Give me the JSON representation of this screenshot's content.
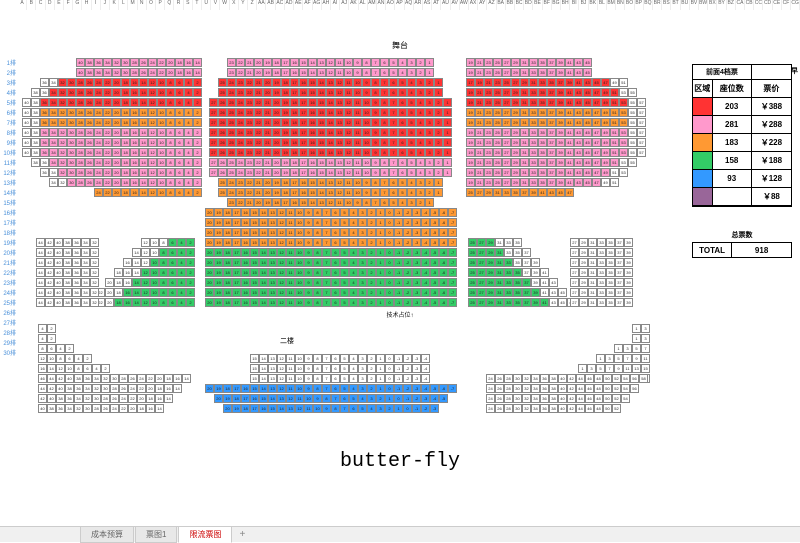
{
  "labels": {
    "stage": "舞台",
    "second_floor": "二楼",
    "tech_position": "技术占位↑",
    "big_text": "butter-fly",
    "early_bird": "早"
  },
  "legend": {
    "title_left": "前面4档票",
    "head_area": "区域",
    "head_count": "座位数",
    "head_price": "票价",
    "rows": [
      {
        "color": "#ff3333",
        "count": "203",
        "price": "￥388"
      },
      {
        "color": "#ff99cc",
        "count": "281",
        "price": "￥288"
      },
      {
        "color": "#ff9933",
        "count": "183",
        "price": "￥228"
      },
      {
        "color": "#33cc66",
        "count": "158",
        "price": "￥188"
      },
      {
        "color": "#3399ff",
        "count": "93",
        "price": "￥128"
      },
      {
        "color": "#996699",
        "count": "",
        "price": "￥88"
      }
    ]
  },
  "total": {
    "label": "总票数",
    "name": "TOTAL",
    "value": "918"
  },
  "sheet_tabs": {
    "t1": "成本预算",
    "t2": "票图1",
    "t3": "限流票图",
    "plus": "+"
  },
  "row_labels": [
    "1排",
    "2排",
    "3排",
    "4排",
    "5排",
    "6排",
    "7排",
    "8排",
    "9排",
    "10排",
    "11排",
    "12排",
    "13排",
    "14排",
    "15排",
    "16排",
    "17排",
    "18排",
    "19排",
    "20排",
    "21排",
    "22排",
    "23排",
    "24排",
    "25排",
    "26排",
    "27排",
    "28排",
    "29排",
    "30排"
  ],
  "colors": {
    "red": "#ff3333",
    "pink": "#ff99cc",
    "orange": "#ff9933",
    "green": "#33cc66",
    "blue": "#3399ff",
    "purple": "#996699",
    "white": "#ffffff"
  }
}
